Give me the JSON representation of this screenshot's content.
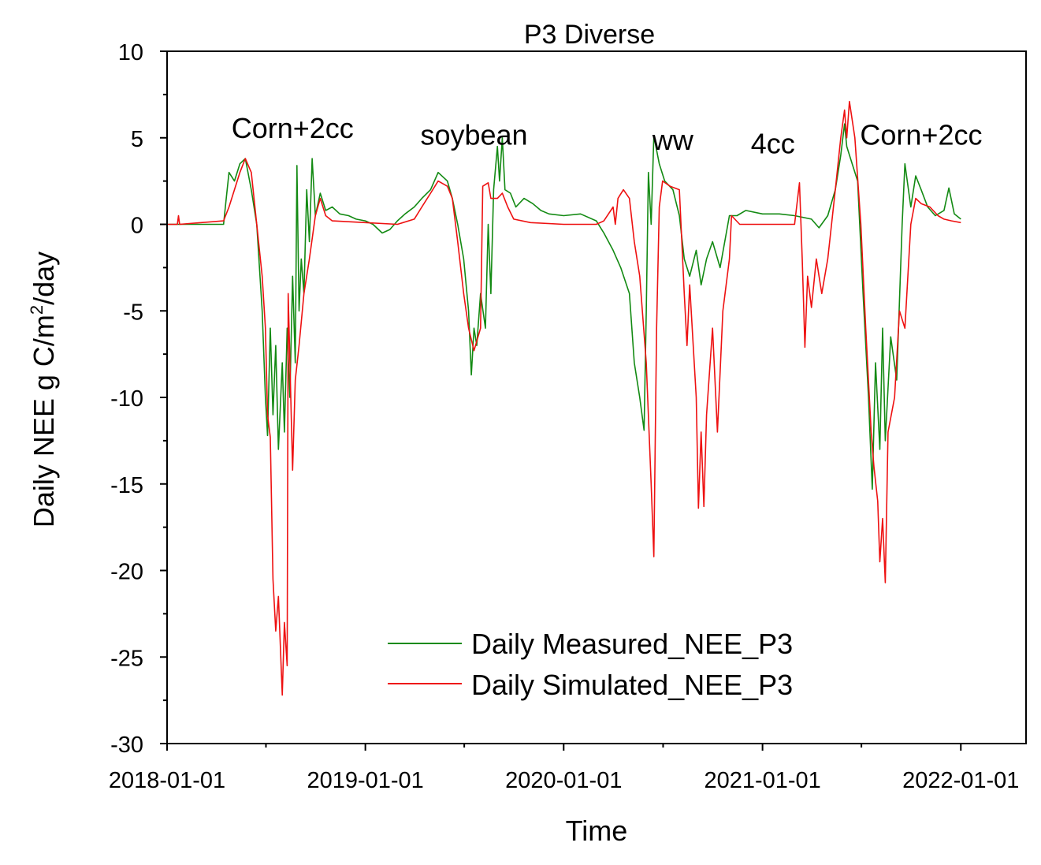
{
  "chart_data": {
    "type": "line",
    "title": "P3 Diverse",
    "xlabel": "Time",
    "ylabel_main": "Daily NEE g C/m",
    "ylabel_sup": "2",
    "ylabel_tail": "/day",
    "x_ticks": [
      "2018-01-01",
      "2019-01-01",
      "2020-01-01",
      "2021-01-01",
      "2022-01-01"
    ],
    "xlim": [
      "2018-01-01",
      "2022-05-01"
    ],
    "ylim": [
      -30,
      10
    ],
    "y_ticks": [
      10,
      5,
      0,
      -5,
      -10,
      -15,
      -20,
      -25,
      -30
    ],
    "legend_position": "lower-center",
    "annotations": [
      {
        "text": "Corn+2cc",
        "x": "2018-08-20",
        "y": 5.0
      },
      {
        "text": "soybean",
        "x": "2019-07-20",
        "y": 4.6
      },
      {
        "text": "ww",
        "x": "2020-07-20",
        "y": 4.3
      },
      {
        "text": "4cc",
        "x": "2021-01-20",
        "y": 4.1
      },
      {
        "text": "Corn+2cc",
        "x": "2021-10-20",
        "y": 4.6
      }
    ],
    "series": [
      {
        "name": "Daily Measured_NEE_P3",
        "color": "#138A13",
        "points": [
          [
            "2018-01-01",
            0.0
          ],
          [
            "2018-04-15",
            0.0
          ],
          [
            "2018-04-20",
            1.5
          ],
          [
            "2018-04-25",
            3.0
          ],
          [
            "2018-05-05",
            2.5
          ],
          [
            "2018-05-15",
            3.5
          ],
          [
            "2018-05-25",
            3.8
          ],
          [
            "2018-06-05",
            2.0
          ],
          [
            "2018-06-15",
            0.0
          ],
          [
            "2018-06-25",
            -5.0
          ],
          [
            "2018-07-01",
            -10.0
          ],
          [
            "2018-07-05",
            -12.2
          ],
          [
            "2018-07-10",
            -6.0
          ],
          [
            "2018-07-15",
            -11.0
          ],
          [
            "2018-07-20",
            -7.0
          ],
          [
            "2018-07-25",
            -13.0
          ],
          [
            "2018-08-01",
            -8.0
          ],
          [
            "2018-08-05",
            -12.0
          ],
          [
            "2018-08-10",
            -6.0
          ],
          [
            "2018-08-15",
            -10.0
          ],
          [
            "2018-08-20",
            -3.0
          ],
          [
            "2018-08-25",
            -8.0
          ],
          [
            "2018-08-28",
            3.4
          ],
          [
            "2018-09-01",
            -5.0
          ],
          [
            "2018-09-05",
            -2.0
          ],
          [
            "2018-09-10",
            -4.0
          ],
          [
            "2018-09-15",
            2.0
          ],
          [
            "2018-09-20",
            -1.0
          ],
          [
            "2018-09-25",
            3.8
          ],
          [
            "2018-10-01",
            0.5
          ],
          [
            "2018-10-10",
            1.8
          ],
          [
            "2018-10-20",
            0.8
          ],
          [
            "2018-11-01",
            1.0
          ],
          [
            "2018-11-15",
            0.6
          ],
          [
            "2018-12-01",
            0.5
          ],
          [
            "2018-12-15",
            0.3
          ],
          [
            "2019-01-01",
            0.2
          ],
          [
            "2019-01-15",
            0.0
          ],
          [
            "2019-02-01",
            -0.5
          ],
          [
            "2019-02-15",
            -0.3
          ],
          [
            "2019-03-01",
            0.2
          ],
          [
            "2019-03-15",
            0.6
          ],
          [
            "2019-04-01",
            1.0
          ],
          [
            "2019-04-15",
            1.5
          ],
          [
            "2019-05-01",
            2.0
          ],
          [
            "2019-05-15",
            3.0
          ],
          [
            "2019-06-01",
            2.5
          ],
          [
            "2019-06-10",
            1.5
          ],
          [
            "2019-06-20",
            0.0
          ],
          [
            "2019-07-01",
            -2.0
          ],
          [
            "2019-07-10",
            -5.0
          ],
          [
            "2019-07-15",
            -8.7
          ],
          [
            "2019-07-20",
            -6.0
          ],
          [
            "2019-07-25",
            -7.0
          ],
          [
            "2019-08-01",
            -4.0
          ],
          [
            "2019-08-10",
            -6.0
          ],
          [
            "2019-08-15",
            0.0
          ],
          [
            "2019-08-20",
            -4.0
          ],
          [
            "2019-08-25",
            2.0
          ],
          [
            "2019-09-01",
            4.5
          ],
          [
            "2019-09-05",
            2.5
          ],
          [
            "2019-09-10",
            5.0
          ],
          [
            "2019-09-15",
            2.0
          ],
          [
            "2019-09-25",
            1.8
          ],
          [
            "2019-10-05",
            1.0
          ],
          [
            "2019-10-20",
            1.5
          ],
          [
            "2019-11-05",
            1.2
          ],
          [
            "2019-11-20",
            0.8
          ],
          [
            "2019-12-05",
            0.6
          ],
          [
            "2020-01-01",
            0.5
          ],
          [
            "2020-02-01",
            0.6
          ],
          [
            "2020-03-01",
            0.2
          ],
          [
            "2020-03-15",
            -0.5
          ],
          [
            "2020-04-01",
            -1.5
          ],
          [
            "2020-04-15",
            -2.5
          ],
          [
            "2020-05-01",
            -4.0
          ],
          [
            "2020-05-10",
            -8.0
          ],
          [
            "2020-05-20",
            -10.0
          ],
          [
            "2020-05-28",
            -11.9
          ],
          [
            "2020-06-01",
            -5.0
          ],
          [
            "2020-06-05",
            3.0
          ],
          [
            "2020-06-10",
            0.0
          ],
          [
            "2020-06-15",
            5.1
          ],
          [
            "2020-06-25",
            3.5
          ],
          [
            "2020-07-05",
            2.5
          ],
          [
            "2020-07-20",
            2.0
          ],
          [
            "2020-08-01",
            0.5
          ],
          [
            "2020-08-10",
            -2.0
          ],
          [
            "2020-08-20",
            -3.0
          ],
          [
            "2020-09-01",
            -1.5
          ],
          [
            "2020-09-10",
            -3.5
          ],
          [
            "2020-09-20",
            -2.0
          ],
          [
            "2020-10-01",
            -1.0
          ],
          [
            "2020-10-15",
            -2.5
          ],
          [
            "2020-11-01",
            0.5
          ],
          [
            "2020-11-15",
            0.5
          ],
          [
            "2020-12-01",
            0.8
          ],
          [
            "2021-01-01",
            0.6
          ],
          [
            "2021-02-01",
            0.6
          ],
          [
            "2021-03-01",
            0.5
          ],
          [
            "2021-04-01",
            0.3
          ],
          [
            "2021-04-15",
            -0.2
          ],
          [
            "2021-05-01",
            0.5
          ],
          [
            "2021-05-15",
            2.0
          ],
          [
            "2021-05-25",
            4.0
          ],
          [
            "2021-06-01",
            5.8
          ],
          [
            "2021-06-05",
            4.5
          ],
          [
            "2021-06-15",
            3.5
          ],
          [
            "2021-06-25",
            2.5
          ],
          [
            "2021-07-05",
            -4.0
          ],
          [
            "2021-07-15",
            -10.0
          ],
          [
            "2021-07-22",
            -15.3
          ],
          [
            "2021-07-28",
            -8.0
          ],
          [
            "2021-08-05",
            -13.0
          ],
          [
            "2021-08-10",
            -6.0
          ],
          [
            "2021-08-15",
            -12.5
          ],
          [
            "2021-08-25",
            -6.5
          ],
          [
            "2021-09-05",
            -9.0
          ],
          [
            "2021-09-15",
            0.0
          ],
          [
            "2021-09-20",
            3.5
          ],
          [
            "2021-10-01",
            1.0
          ],
          [
            "2021-10-10",
            2.8
          ],
          [
            "2021-10-20",
            2.0
          ],
          [
            "2021-11-01",
            1.0
          ],
          [
            "2021-11-15",
            0.5
          ],
          [
            "2021-12-01",
            0.8
          ],
          [
            "2021-12-10",
            2.1
          ],
          [
            "2021-12-20",
            0.6
          ],
          [
            "2022-01-01",
            0.3
          ]
        ]
      },
      {
        "name": "Daily Simulated_NEE_P3",
        "color": "#EE1111",
        "points": [
          [
            "2018-01-01",
            0.0
          ],
          [
            "2018-01-20",
            0.0
          ],
          [
            "2018-01-22",
            0.5
          ],
          [
            "2018-01-24",
            0.0
          ],
          [
            "2018-04-15",
            0.2
          ],
          [
            "2018-04-25",
            1.0
          ],
          [
            "2018-05-05",
            2.0
          ],
          [
            "2018-05-15",
            3.0
          ],
          [
            "2018-05-25",
            3.8
          ],
          [
            "2018-06-05",
            3.0
          ],
          [
            "2018-06-15",
            0.0
          ],
          [
            "2018-06-25",
            -3.0
          ],
          [
            "2018-07-01",
            -6.0
          ],
          [
            "2018-07-05",
            -11.0
          ],
          [
            "2018-07-10",
            -12.3
          ],
          [
            "2018-07-15",
            -20.5
          ],
          [
            "2018-07-20",
            -23.5
          ],
          [
            "2018-07-25",
            -21.5
          ],
          [
            "2018-08-01",
            -27.2
          ],
          [
            "2018-08-05",
            -23.0
          ],
          [
            "2018-08-10",
            -25.5
          ],
          [
            "2018-08-12",
            -4.0
          ],
          [
            "2018-08-20",
            -14.2
          ],
          [
            "2018-08-25",
            -9.0
          ],
          [
            "2018-09-01",
            -7.0
          ],
          [
            "2018-09-10",
            -4.0
          ],
          [
            "2018-09-20",
            -2.0
          ],
          [
            "2018-10-01",
            0.5
          ],
          [
            "2018-10-10",
            1.5
          ],
          [
            "2018-10-20",
            0.5
          ],
          [
            "2018-11-01",
            0.2
          ],
          [
            "2019-01-01",
            0.1
          ],
          [
            "2019-03-01",
            0.0
          ],
          [
            "2019-04-01",
            0.3
          ],
          [
            "2019-04-15",
            1.0
          ],
          [
            "2019-05-01",
            1.8
          ],
          [
            "2019-05-15",
            2.5
          ],
          [
            "2019-06-01",
            2.2
          ],
          [
            "2019-06-10",
            1.5
          ],
          [
            "2019-06-20",
            -1.0
          ],
          [
            "2019-07-01",
            -4.0
          ],
          [
            "2019-07-10",
            -6.0
          ],
          [
            "2019-07-20",
            -7.3
          ],
          [
            "2019-08-01",
            -6.0
          ],
          [
            "2019-08-05",
            2.2
          ],
          [
            "2019-08-15",
            2.4
          ],
          [
            "2019-08-20",
            1.5
          ],
          [
            "2019-09-01",
            1.5
          ],
          [
            "2019-09-10",
            1.8
          ],
          [
            "2019-09-20",
            1.0
          ],
          [
            "2019-10-01",
            0.3
          ],
          [
            "2019-11-01",
            0.1
          ],
          [
            "2020-01-01",
            0.0
          ],
          [
            "2020-03-01",
            0.0
          ],
          [
            "2020-03-15",
            0.2
          ],
          [
            "2020-04-01",
            1.0
          ],
          [
            "2020-04-05",
            0.0
          ],
          [
            "2020-04-10",
            1.5
          ],
          [
            "2020-04-20",
            2.0
          ],
          [
            "2020-05-01",
            1.5
          ],
          [
            "2020-05-10",
            -1.0
          ],
          [
            "2020-05-20",
            -3.0
          ],
          [
            "2020-06-01",
            -8.0
          ],
          [
            "2020-06-10",
            -15.0
          ],
          [
            "2020-06-15",
            -19.2
          ],
          [
            "2020-06-20",
            -6.0
          ],
          [
            "2020-06-25",
            1.0
          ],
          [
            "2020-07-01",
            2.5
          ],
          [
            "2020-07-15",
            2.2
          ],
          [
            "2020-08-01",
            2.0
          ],
          [
            "2020-08-10",
            -4.0
          ],
          [
            "2020-08-15",
            -7.0
          ],
          [
            "2020-08-20",
            -3.5
          ],
          [
            "2020-09-01",
            -10.0
          ],
          [
            "2020-09-05",
            -16.4
          ],
          [
            "2020-09-10",
            -12.0
          ],
          [
            "2020-09-15",
            -16.3
          ],
          [
            "2020-09-20",
            -11.0
          ],
          [
            "2020-10-01",
            -6.0
          ],
          [
            "2020-10-10",
            -12.0
          ],
          [
            "2020-10-20",
            -5.0
          ],
          [
            "2020-11-01",
            -2.0
          ],
          [
            "2020-11-05",
            0.5
          ],
          [
            "2020-11-20",
            0.0
          ],
          [
            "2021-01-01",
            0.0
          ],
          [
            "2021-03-01",
            0.0
          ],
          [
            "2021-03-10",
            2.4
          ],
          [
            "2021-03-15",
            -2.0
          ],
          [
            "2021-03-20",
            -7.1
          ],
          [
            "2021-03-25",
            -3.0
          ],
          [
            "2021-04-01",
            -4.8
          ],
          [
            "2021-04-10",
            -2.0
          ],
          [
            "2021-04-20",
            -4.0
          ],
          [
            "2021-05-01",
            -2.0
          ],
          [
            "2021-05-15",
            2.0
          ],
          [
            "2021-05-25",
            5.0
          ],
          [
            "2021-06-01",
            6.6
          ],
          [
            "2021-06-05",
            5.0
          ],
          [
            "2021-06-10",
            7.1
          ],
          [
            "2021-06-20",
            5.0
          ],
          [
            "2021-07-01",
            0.0
          ],
          [
            "2021-07-10",
            -6.0
          ],
          [
            "2021-07-20",
            -12.0
          ],
          [
            "2021-07-25",
            -14.0
          ],
          [
            "2021-08-01",
            -16.0
          ],
          [
            "2021-08-05",
            -19.5
          ],
          [
            "2021-08-10",
            -17.0
          ],
          [
            "2021-08-15",
            -20.7
          ],
          [
            "2021-08-20",
            -12.0
          ],
          [
            "2021-09-01",
            -10.0
          ],
          [
            "2021-09-10",
            -5.0
          ],
          [
            "2021-09-20",
            -6.0
          ],
          [
            "2021-10-01",
            0.0
          ],
          [
            "2021-10-10",
            1.5
          ],
          [
            "2021-10-20",
            1.2
          ],
          [
            "2021-11-05",
            1.0
          ],
          [
            "2021-11-20",
            0.5
          ],
          [
            "2021-12-01",
            0.3
          ],
          [
            "2021-12-15",
            0.2
          ],
          [
            "2022-01-01",
            0.1
          ]
        ]
      }
    ]
  }
}
